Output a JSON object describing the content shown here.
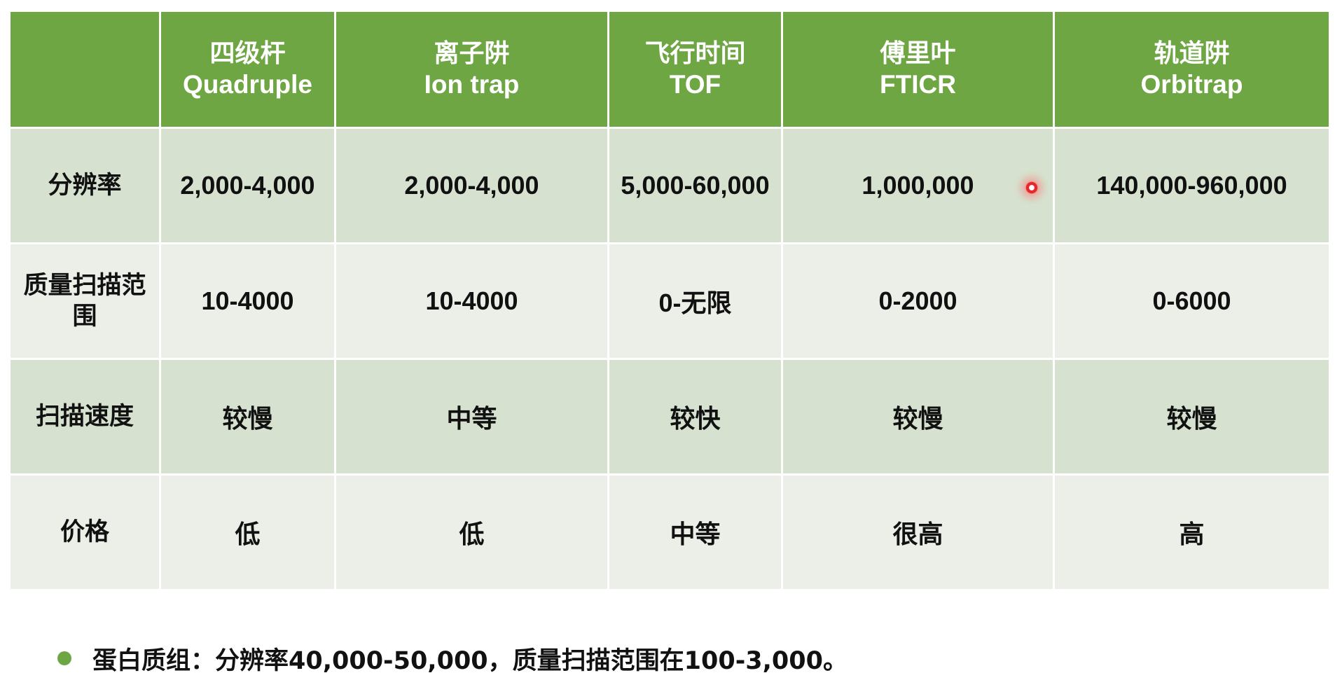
{
  "table": {
    "header": [
      {
        "zh": "",
        "en": ""
      },
      {
        "zh": "四级杆",
        "en": "Quadruple"
      },
      {
        "zh": "离子阱",
        "en": "Ion trap"
      },
      {
        "zh": "飞行时间",
        "en": "TOF"
      },
      {
        "zh": "傅里叶",
        "en": "FTICR"
      },
      {
        "zh": "轨道阱",
        "en": "Orbitrap"
      }
    ],
    "rows": [
      {
        "label": "分辨率",
        "cells": [
          "2,000-4,000",
          "2,000-4,000",
          "5,000-60,000",
          "1,000,000",
          "140,000-960,000"
        ]
      },
      {
        "label": "质量扫描范围",
        "cells": [
          "10-4000",
          "10-4000",
          "0-无限",
          "0-2000",
          "0-6000"
        ]
      },
      {
        "label": "扫描速度",
        "cells": [
          "较慢",
          "中等",
          "较快",
          "较慢",
          "较慢"
        ]
      },
      {
        "label": "价格",
        "cells": [
          "低",
          "低",
          "中等",
          "很高",
          "高"
        ]
      }
    ]
  },
  "note": {
    "text": "蛋白质组：分辨率40,000-50,000，质量扫描范围在100-3,000。",
    "bullet_color": "#6fa644"
  },
  "colors": {
    "header_bg": "#6fa644",
    "row_dark": "#d6e2cf",
    "row_light": "#ebefe8",
    "cursor": "#e8252a"
  }
}
